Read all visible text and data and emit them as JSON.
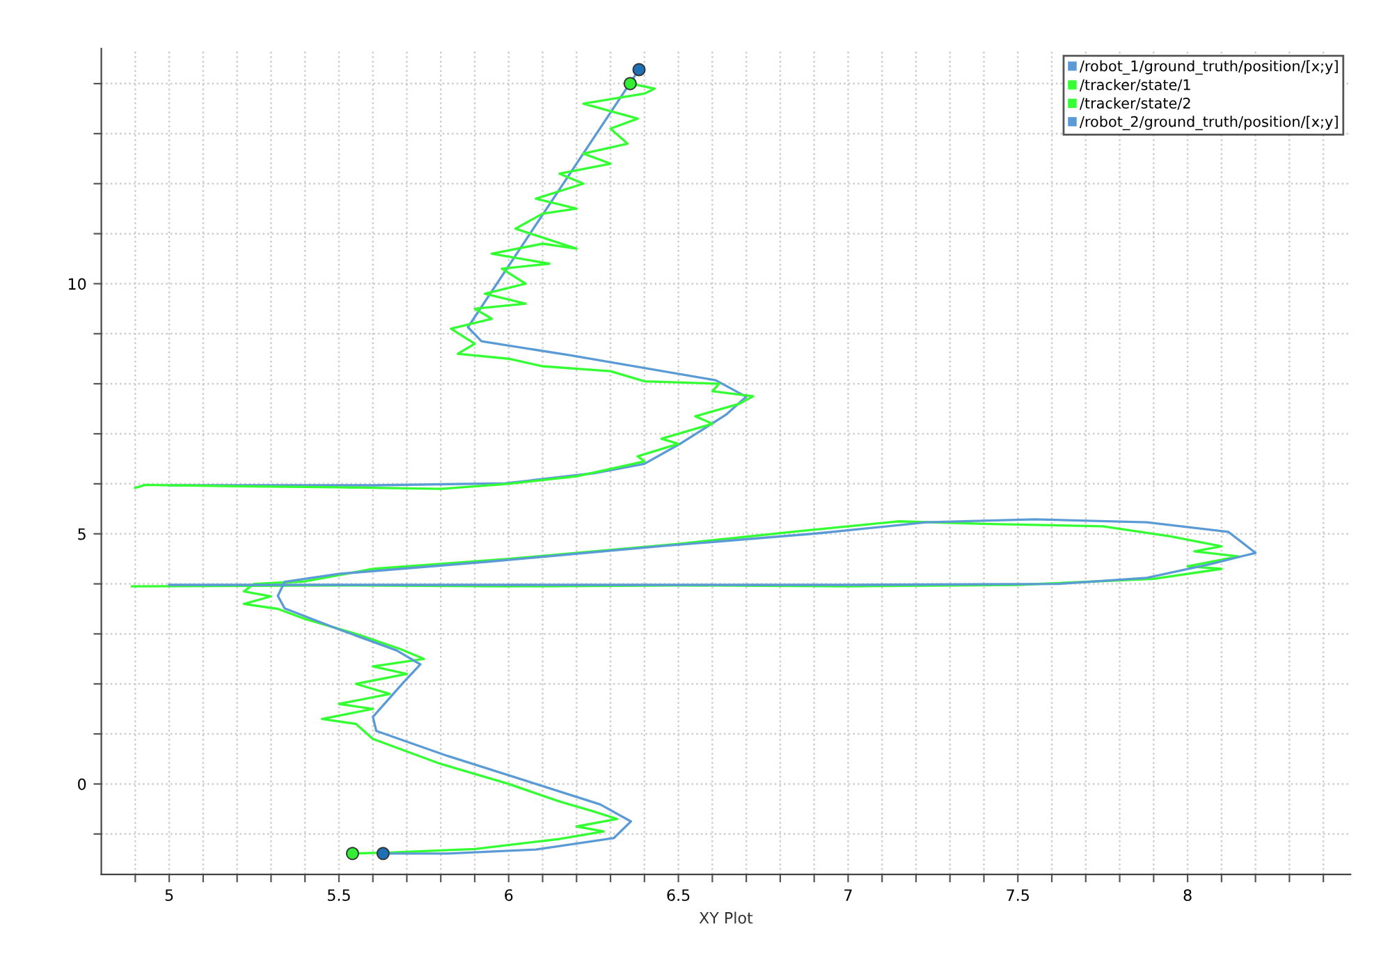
{
  "chart_data": {
    "type": "line",
    "xlabel": "XY Plot",
    "xlim": [
      4.8,
      8.48
    ],
    "ylim": [
      -1.81,
      14.7
    ],
    "xticks": [
      {
        "value": 4.9,
        "label": null
      },
      5,
      {
        "value": 5.1,
        "label": null
      },
      {
        "value": 5.2,
        "label": null
      },
      {
        "value": 5.3,
        "label": null
      },
      {
        "value": 5.4,
        "label": null
      },
      5.5,
      {
        "value": 5.6,
        "label": null
      },
      {
        "value": 5.7,
        "label": null
      },
      {
        "value": 5.8,
        "label": null
      },
      {
        "value": 5.9,
        "label": null
      },
      6,
      {
        "value": 6.1,
        "label": null
      },
      {
        "value": 6.2,
        "label": null
      },
      {
        "value": 6.3,
        "label": null
      },
      {
        "value": 6.4,
        "label": null
      },
      6.5,
      {
        "value": 6.6,
        "label": null
      },
      {
        "value": 6.7,
        "label": null
      },
      {
        "value": 6.8,
        "label": null
      },
      {
        "value": 6.9,
        "label": null
      },
      7,
      {
        "value": 7.1,
        "label": null
      },
      {
        "value": 7.2,
        "label": null
      },
      {
        "value": 7.3,
        "label": null
      },
      {
        "value": 7.4,
        "label": null
      },
      7.5,
      {
        "value": 7.6,
        "label": null
      },
      {
        "value": 7.7,
        "label": null
      },
      {
        "value": 7.8,
        "label": null
      },
      {
        "value": 7.9,
        "label": null
      },
      8,
      {
        "value": 8.1,
        "label": null
      },
      {
        "value": 8.2,
        "label": null
      },
      {
        "value": 8.3,
        "label": null
      },
      {
        "value": 8.4,
        "label": null
      }
    ],
    "yticks": [
      {
        "value": -1,
        "label": null
      },
      0,
      {
        "value": 1,
        "label": null
      },
      {
        "value": 2,
        "label": null
      },
      {
        "value": 3,
        "label": null
      },
      {
        "value": 4,
        "label": null
      },
      5,
      {
        "value": 6,
        "label": null
      },
      {
        "value": 7,
        "label": null
      },
      {
        "value": 8,
        "label": null
      },
      {
        "value": 9,
        "label": null
      },
      10,
      {
        "value": 11,
        "label": null
      },
      {
        "value": 12,
        "label": null
      },
      {
        "value": 13,
        "label": null
      },
      {
        "value": 14,
        "label": null
      }
    ],
    "grid": true,
    "legend": "top right",
    "line_style": "solid",
    "series": [
      {
        "name": "/robot_1/ground_truth/position/[x;y]",
        "color": "#5b9bd5",
        "x": [
          5.0,
          5.6,
          5.99,
          6.25,
          6.4,
          6.51,
          6.64,
          6.7,
          6.61,
          6.18,
          5.92,
          5.88,
          6.384
        ],
        "values": [
          5.97,
          5.97,
          6.01,
          6.21,
          6.4,
          6.82,
          7.38,
          7.74,
          8.07,
          8.57,
          8.85,
          9.13,
          14.28
        ]
      },
      {
        "name": "/tracker/state/1",
        "color": "#33ff33",
        "x": [
          4.9,
          4.93,
          5.2,
          5.5,
          5.8,
          6.0,
          6.2,
          6.3,
          6.4,
          6.38,
          6.5,
          6.45,
          6.6,
          6.55,
          6.68,
          6.72,
          6.6,
          6.62,
          6.4,
          6.3,
          6.1,
          6.0,
          5.85,
          5.9,
          5.83,
          5.95,
          5.9,
          6.05,
          5.93,
          6.05,
          5.98,
          6.12,
          5.95,
          6.1,
          6.2,
          6.02,
          6.1,
          6.2,
          6.08,
          6.22,
          6.15,
          6.3,
          6.22,
          6.35,
          6.3,
          6.38,
          6.22,
          6.4,
          6.43,
          6.36
        ],
        "values": [
          5.92,
          5.98,
          5.95,
          5.93,
          5.9,
          6.0,
          6.15,
          6.3,
          6.45,
          6.55,
          6.8,
          6.9,
          7.2,
          7.35,
          7.6,
          7.75,
          7.85,
          8.0,
          8.05,
          8.25,
          8.35,
          8.5,
          8.6,
          8.8,
          9.1,
          9.3,
          9.5,
          9.6,
          9.8,
          10.0,
          10.3,
          10.4,
          10.6,
          10.8,
          10.7,
          11.1,
          11.4,
          11.5,
          11.7,
          12.0,
          12.2,
          12.4,
          12.6,
          12.8,
          13.1,
          13.3,
          13.6,
          13.8,
          13.9,
          14.0
        ]
      },
      {
        "name": "/tracker/state/2",
        "color": "#33ff33",
        "x": [
          4.89,
          5.5,
          6.0,
          6.5,
          7.0,
          7.5,
          7.9,
          8.1,
          8.0,
          8.15,
          8.02,
          8.1,
          7.95,
          7.75,
          7.4,
          7.15,
          6.85,
          6.5,
          6.0,
          5.6,
          5.4,
          5.25,
          5.22,
          5.3,
          5.22,
          5.32,
          5.4,
          5.55,
          5.68,
          5.75,
          5.6,
          5.7,
          5.55,
          5.65,
          5.5,
          5.6,
          5.45,
          5.55,
          5.6,
          5.8,
          6.0,
          6.15,
          6.25,
          6.32,
          6.2,
          6.28,
          6.15,
          5.9,
          5.65,
          5.54
        ],
        "values": [
          3.95,
          3.97,
          3.95,
          3.97,
          3.95,
          3.98,
          4.1,
          4.3,
          4.35,
          4.55,
          4.65,
          4.75,
          4.95,
          5.15,
          5.2,
          5.25,
          5.05,
          4.8,
          4.5,
          4.3,
          4.05,
          4.0,
          3.85,
          3.75,
          3.6,
          3.5,
          3.3,
          3.0,
          2.7,
          2.5,
          2.35,
          2.2,
          2.0,
          1.8,
          1.6,
          1.5,
          1.3,
          1.2,
          0.9,
          0.4,
          0.0,
          -0.35,
          -0.55,
          -0.7,
          -0.85,
          -0.95,
          -1.1,
          -1.3,
          -1.37,
          -1.39
        ]
      },
      {
        "name": "/robot_2/ground_truth/position/[x;y]",
        "color": "#5b9bd5",
        "x": [
          5.0,
          5.5,
          6.0,
          6.5,
          7.0,
          7.62,
          7.88,
          8.07,
          8.2,
          8.12,
          7.88,
          7.55,
          7.23,
          6.91,
          6.46,
          5.95,
          5.5,
          5.34,
          5.32,
          5.34,
          5.5,
          5.67,
          5.74,
          5.69,
          5.6,
          5.61,
          5.82,
          6.08,
          6.27,
          6.36,
          6.31,
          6.08,
          5.82,
          5.63
        ],
        "values": [
          3.98,
          3.98,
          3.98,
          3.98,
          3.98,
          4.0,
          4.12,
          4.4,
          4.62,
          5.04,
          5.23,
          5.29,
          5.23,
          5.01,
          4.76,
          4.45,
          4.2,
          4.04,
          3.76,
          3.51,
          3.09,
          2.67,
          2.39,
          2.03,
          1.34,
          1.06,
          0.56,
          0.0,
          -0.41,
          -0.75,
          -1.08,
          -1.31,
          -1.39,
          -1.39
        ]
      },
      {
        "type": "scatter",
        "marker": "circle",
        "color": "#1f6fb5",
        "x": [
          6.384
        ],
        "values": [
          14.28
        ]
      },
      {
        "type": "scatter",
        "marker": "circle",
        "color": "#33ee33",
        "x": [
          6.358
        ],
        "values": [
          14.0
        ]
      },
      {
        "type": "scatter",
        "marker": "circle",
        "color": "#33ee33",
        "x": [
          5.54
        ],
        "values": [
          -1.39
        ]
      },
      {
        "type": "scatter",
        "marker": "circle",
        "color": "#1f6fb5",
        "x": [
          5.63
        ],
        "values": [
          -1.39
        ]
      }
    ]
  }
}
